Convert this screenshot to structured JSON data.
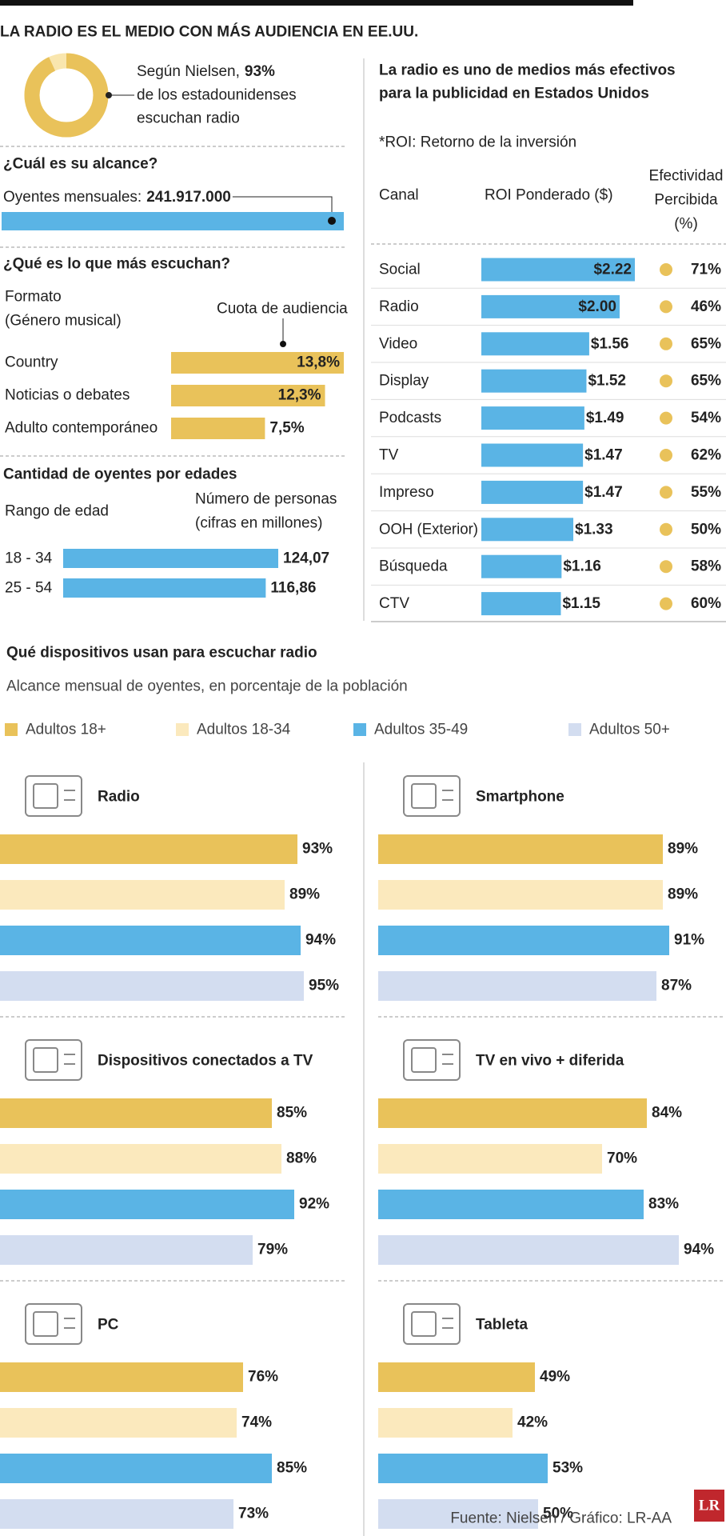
{
  "title": "LA RADIO ES EL MEDIO CON MÁS AUDIENCIA EN EE.UU.",
  "source": "Fuente: Nielsen / Gráfico: LR-AA",
  "logo": "LR",
  "chart_data": [
    {
      "type": "pie",
      "text_before": "Según Nielsen,",
      "values": [
        93
      ],
      "value_labels": [
        "93%"
      ],
      "text_after": [
        "de los estadounidenses",
        "escuchan radio"
      ],
      "colors": [
        "#e9c25a",
        "#f9e6ae"
      ]
    },
    {
      "type": "bar",
      "title": "¿Cuál es su alcance?",
      "label": "Oyentes mensuales:",
      "values": [
        241917000
      ],
      "value_labels": [
        "241.917.000"
      ],
      "color": "#5ab4e5"
    },
    {
      "type": "bar",
      "title": "¿Qué es lo que más escuchan?",
      "category_header": [
        "Formato",
        "(Género musical)"
      ],
      "value_header": "Cuota de audiencia",
      "categories": [
        "Country",
        "Noticias o debates",
        "Adulto contemporáneo"
      ],
      "values": [
        13.8,
        12.3,
        7.5
      ],
      "value_labels": [
        "13,8%",
        "12,3%",
        "7,5%"
      ],
      "color": "#e9c25a"
    },
    {
      "type": "bar",
      "title": "Cantidad de oyentes por edades",
      "category_header": "Rango de edad",
      "value_header": [
        "Número de personas",
        "(cifras en millones)"
      ],
      "categories": [
        "18 - 34",
        "25 - 54"
      ],
      "values": [
        124.07,
        116.86
      ],
      "value_labels": [
        "124,07",
        "116,86"
      ],
      "color": "#5ab4e5"
    },
    {
      "type": "bar",
      "title": [
        "La radio es uno de medios más efectivos",
        "para la publicidad en Estados Unidos"
      ],
      "note": "*ROI: Retorno de la inversión",
      "category_header": "Canal",
      "categories": [
        "Social",
        "Radio",
        "Video",
        "Display",
        "Podcasts",
        "TV",
        "Impreso",
        "OOH (Exterior)",
        "Búsqueda",
        "CTV"
      ],
      "series": [
        {
          "name": "ROI Ponderado ($)",
          "color": "#5ab4e5",
          "values": [
            2.22,
            2.0,
            1.56,
            1.52,
            1.49,
            1.47,
            1.47,
            1.33,
            1.16,
            1.15
          ],
          "value_labels": [
            "$2.22",
            "$2.00",
            "$1.56",
            "$1.52",
            "$1.49",
            "$1.47",
            "$1.47",
            "$1.33",
            "$1.16",
            "$1.15"
          ]
        },
        {
          "name": [
            "Efectividad",
            "Percibida",
            "(%)"
          ],
          "color": "#e9c25a",
          "values": [
            71,
            46,
            65,
            65,
            54,
            62,
            55,
            50,
            58,
            60
          ],
          "value_labels": [
            "71%",
            "46%",
            "65%",
            "65%",
            "54%",
            "62%",
            "55%",
            "50%",
            "58%",
            "60%"
          ]
        }
      ]
    },
    {
      "type": "grouped_bar",
      "title": "Qué dispositivos usan para escuchar radio",
      "subtitle": "Alcance mensual de oyentes, en porcentaje de la población",
      "categories": [
        "Radio",
        "Smartphone",
        "Dispositivos conectados a TV",
        "TV en vivo + diferida",
        "PC",
        "Tableta"
      ],
      "series": [
        {
          "name": "Adultos 18+",
          "color": "#e9c25a",
          "values": [
            93,
            89,
            85,
            84,
            76,
            49
          ],
          "value_labels": [
            "93%",
            "89%",
            "85%",
            "84%",
            "76%",
            "49%"
          ]
        },
        {
          "name": "Adultos 18-34",
          "color": "#fbe9bd",
          "values": [
            89,
            89,
            88,
            70,
            74,
            42
          ],
          "value_labels": [
            "89%",
            "89%",
            "88%",
            "70%",
            "74%",
            "42%"
          ]
        },
        {
          "name": "Adultos 35-49",
          "color": "#5ab4e5",
          "values": [
            94,
            91,
            92,
            83,
            85,
            53
          ],
          "value_labels": [
            "94%",
            "91%",
            "92%",
            "83%",
            "85%",
            "53%"
          ]
        },
        {
          "name": "Adultos 50+",
          "color": "#d3ddf0",
          "values": [
            95,
            87,
            79,
            94,
            73,
            50
          ],
          "value_labels": [
            "95%",
            "87%",
            "79%",
            "94%",
            "73%",
            "50%"
          ]
        }
      ]
    }
  ]
}
